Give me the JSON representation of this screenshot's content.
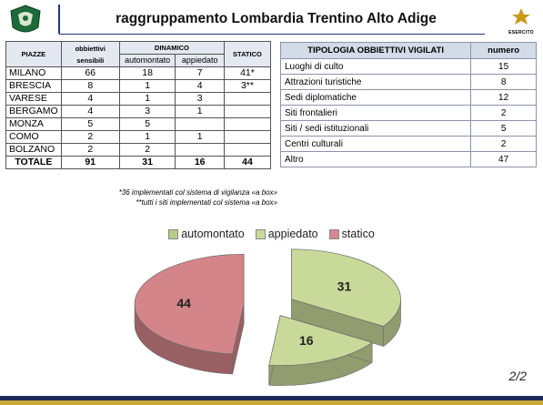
{
  "header": {
    "title": "raggruppamento Lombardia Trentino Alto Adige",
    "logo_right_text": "ESERCITO"
  },
  "left_table": {
    "headers": {
      "piazze": "PIAZZE",
      "obiettivi": "obbiettivi sensibili",
      "dinamico": "DINAMICO",
      "automontato": "automontato",
      "appiedato": "appiedato",
      "statico": "STATICO"
    },
    "rows": [
      {
        "piazza": "MILANO",
        "obiettivi": "66",
        "automontato": "18",
        "appiedato": "7",
        "statico": "41*"
      },
      {
        "piazza": "BRESCIA",
        "obiettivi": "8",
        "automontato": "1",
        "appiedato": "4",
        "statico": "3**"
      },
      {
        "piazza": "VARESE",
        "obiettivi": "4",
        "automontato": "1",
        "appiedato": "3",
        "statico": ""
      },
      {
        "piazza": "BERGAMO",
        "obiettivi": "4",
        "automontato": "3",
        "appiedato": "1",
        "statico": ""
      },
      {
        "piazza": "MONZA",
        "obiettivi": "5",
        "automontato": "5",
        "appiedato": "",
        "statico": ""
      },
      {
        "piazza": "COMO",
        "obiettivi": "2",
        "automontato": "1",
        "appiedato": "1",
        "statico": ""
      },
      {
        "piazza": "BOLZANO",
        "obiettivi": "2",
        "automontato": "2",
        "appiedato": "",
        "statico": ""
      }
    ],
    "totals": {
      "label": "TOTALE",
      "obiettivi": "91",
      "automontato": "31",
      "appiedato": "16",
      "statico": "44"
    },
    "notes": [
      "*36 implementati col sistema di vigilanza «a box»",
      "**tutti i siti implementati col sistema «a box»"
    ]
  },
  "right_table": {
    "headers": {
      "tipologia": "TIPOLOGIA OBBIETTIVI VIGILATI",
      "numero": "numero"
    },
    "rows": [
      {
        "tipologia": "Luoghi di culto",
        "numero": "15"
      },
      {
        "tipologia": "Attrazioni turistiche",
        "numero": "8"
      },
      {
        "tipologia": "Sedi diplomatiche",
        "numero": "12"
      },
      {
        "tipologia": "Siti frontalieri",
        "numero": "2"
      },
      {
        "tipologia": "Siti / sedi istituzionali",
        "numero": "5"
      },
      {
        "tipologia": "Centri culturali",
        "numero": "2"
      },
      {
        "tipologia": "Altro",
        "numero": "47"
      }
    ]
  },
  "chart_data": {
    "type": "pie",
    "categories": [
      "automontato",
      "appiedato",
      "statico"
    ],
    "values": [
      31,
      16,
      44
    ],
    "colors": [
      "#c9d99a",
      "#c9d99a",
      "#d4858a"
    ],
    "legend_colors": [
      "#b8cc88",
      "#c9d99a",
      "#d48a8e"
    ],
    "legend_position": "top",
    "exploded": true,
    "style": "3d"
  },
  "footer": {
    "page": "2/2"
  }
}
